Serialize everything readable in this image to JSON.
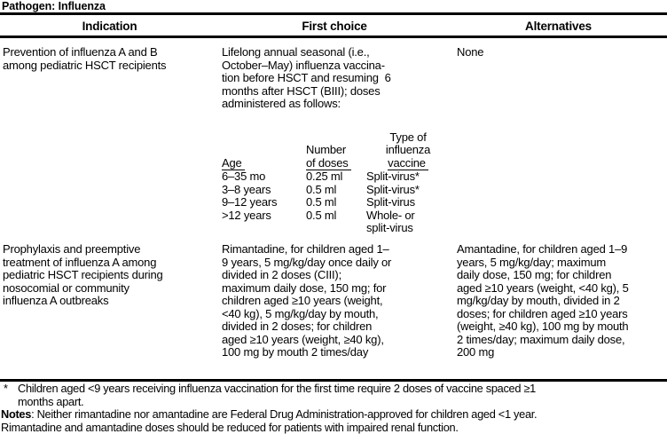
{
  "title": "Pathogen: Influenza",
  "table": {
    "columns": [
      "Indication",
      "First choice",
      "Alternatives"
    ],
    "rows": [
      {
        "indication": [
          "Prevention of influenza A and B",
          "among pediatric HSCT recipients"
        ],
        "first_choice": {
          "intro": [
            "Lifelong annual seasonal (i.e.,",
            "October–May) influenza vaccina-",
            "tion before HSCT and resuming  6",
            "months after HSCT (BIII); doses",
            "administered as follows:"
          ],
          "dose_table": {
            "header_age": "Age",
            "header_doses": [
              "Number",
              "of doses"
            ],
            "header_type": [
              "Type of",
              "influenza",
              "vaccine"
            ],
            "rows": [
              {
                "age": "6–35 mo",
                "doses": "0.25 ml",
                "vaccine": [
                  "Split-virus*"
                ]
              },
              {
                "age": "3–8 years",
                "doses": "0.5 ml",
                "vaccine": [
                  "Split-virus*"
                ]
              },
              {
                "age": "9–12 years",
                "doses": "0.5 ml",
                "vaccine": [
                  "Split-virus"
                ]
              },
              {
                "age": ">12 years",
                "doses": "0.5 ml",
                "vaccine": [
                  "Whole- or",
                  "split-virus"
                ]
              }
            ]
          }
        },
        "alternatives": [
          "None"
        ]
      },
      {
        "indication": [
          "Prophylaxis and preemptive",
          "treatment of influenza A among",
          "pediatric HSCT recipients during",
          "nosocomial or community",
          "influenza A outbreaks"
        ],
        "first_choice": {
          "text": [
            "Rimantadine, for children aged 1–",
            "9 years, 5 mg/kg/day once daily or",
            "divided in 2 doses (CIII);",
            "maximum daily dose, 150 mg; for",
            "children aged ≥10 years (weight,",
            "<40 kg), 5 mg/kg/day by mouth,",
            "divided in 2 doses; for children",
            "aged ≥10 years (weight, ≥40 kg),",
            "100 mg by mouth 2 times/day"
          ]
        },
        "alternatives": [
          "Amantadine, for children aged 1–9",
          "years, 5 mg/kg/day; maximum",
          "daily dose, 150 mg; for children",
          "aged ≥10 years (weight, <40 kg), 5",
          "mg/kg/day by mouth, divided in 2",
          "doses; for children aged ≥10 years",
          "(weight, ≥40 kg), 100 mg by mouth",
          "2 times/day; maximum daily dose,",
          "200 mg"
        ]
      }
    ]
  },
  "footnote": {
    "marker": "*",
    "lines": [
      "Children aged <9 years receiving influenza vaccination for the first time require 2 doses of vaccine spaced ≥1",
      "months apart."
    ]
  },
  "notes": {
    "label": "Notes",
    "text": [
      ": Neither rimantadine nor amantadine are Federal Drug Administration-approved for children aged <1 year.",
      "Rimantadine and amantadine doses should be reduced for patients with impaired renal function."
    ]
  }
}
